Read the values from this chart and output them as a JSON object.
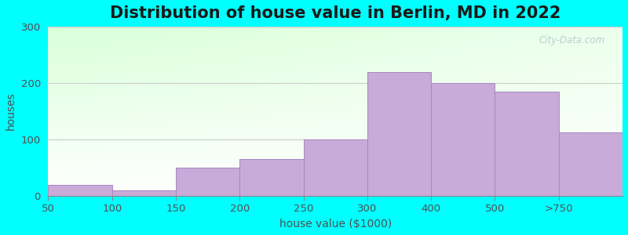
{
  "title": "Distribution of house value in Berlin, MD in 2022",
  "xlabel": "house value ($1000)",
  "ylabel": "houses",
  "bar_labels": [
    "50",
    "100",
    "150",
    "200",
    "250",
    "300",
    "400",
    "500",
    ">750"
  ],
  "bar_values": [
    20,
    10,
    50,
    65,
    100,
    220,
    200,
    185,
    113
  ],
  "bar_color": "#c9aad8",
  "bar_edgecolor": "#a888c0",
  "background_outer": "#00FFFF",
  "plot_bg_color_top_left": "#d8f5d8",
  "plot_bg_color_top_right": "#f5fff5",
  "plot_bg_color_bottom": "#ffffff",
  "ylim": [
    0,
    300
  ],
  "yticks": [
    0,
    100,
    200,
    300
  ],
  "title_fontsize": 15,
  "label_fontsize": 10,
  "tick_fontsize": 9.5,
  "watermark": "City-Data.com"
}
